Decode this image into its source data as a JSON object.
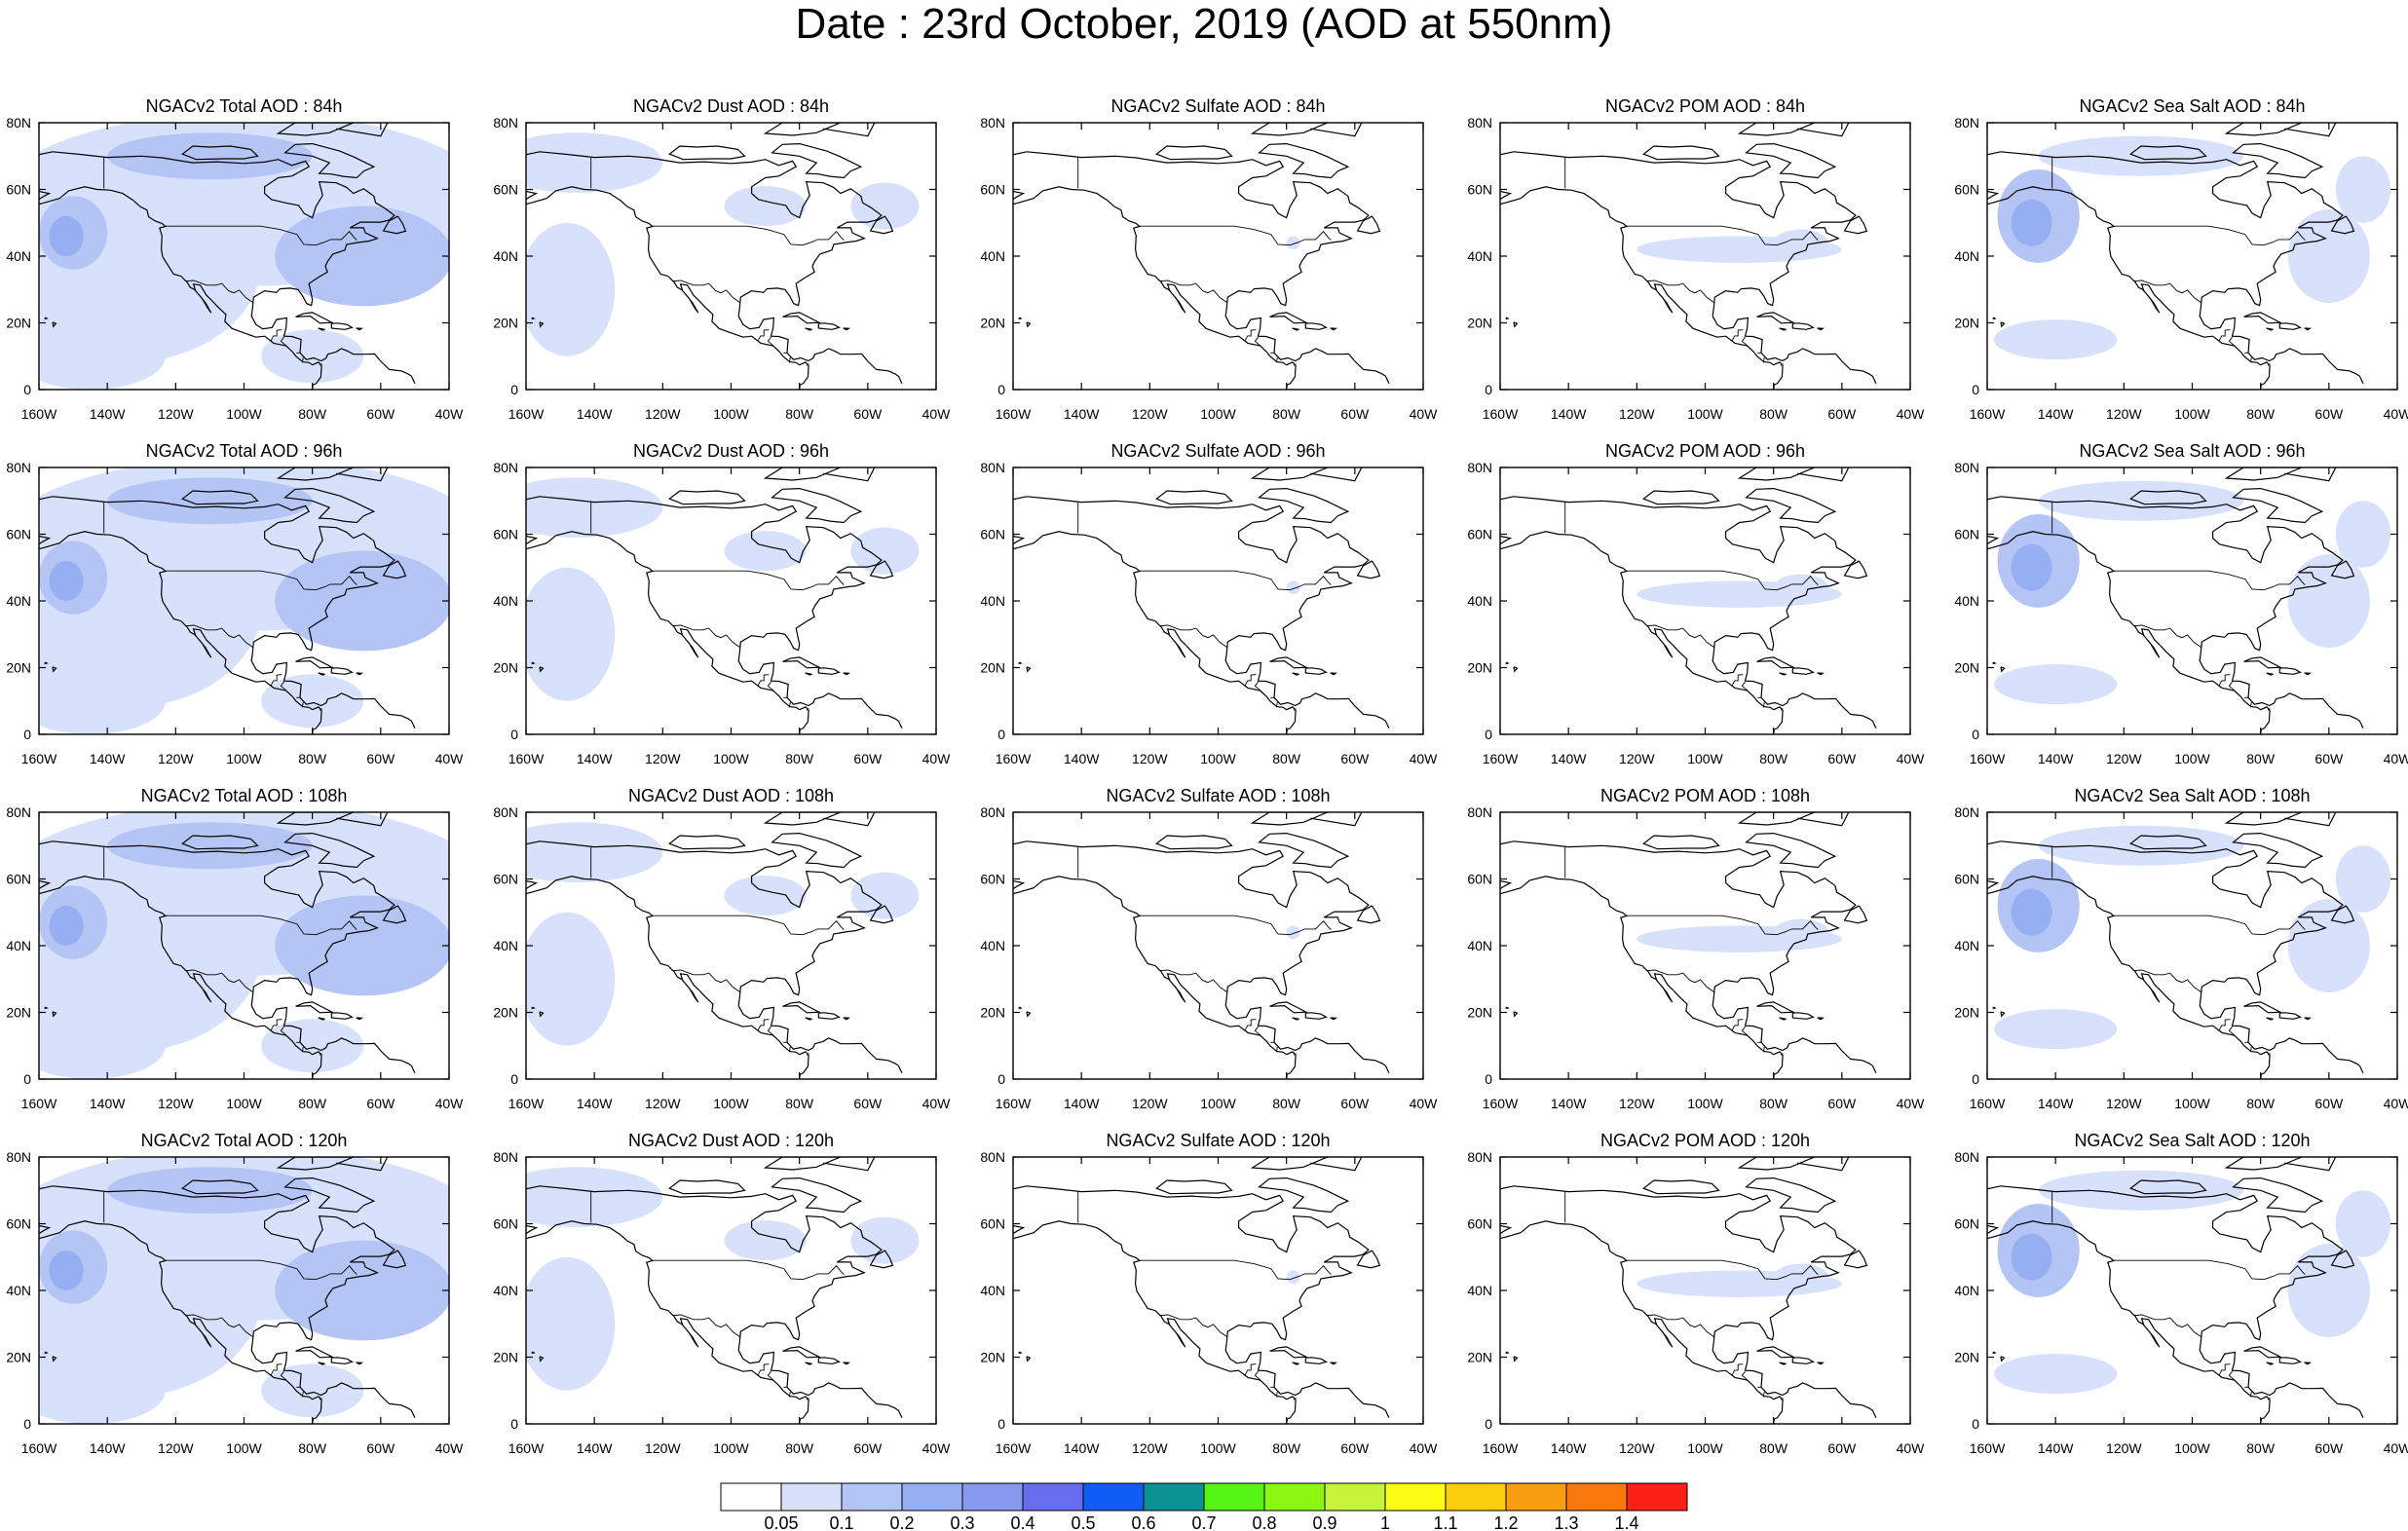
{
  "figure": {
    "title": "Date : 23rd October, 2019 (AOD at 550nm)",
    "x_ticks": [
      "160W",
      "140W",
      "120W",
      "100W",
      "80W",
      "60W",
      "40W"
    ],
    "y_ticks": [
      "0",
      "20N",
      "40N",
      "60N",
      "80N"
    ],
    "rows": [
      {
        "panels": [
          {
            "title": "NGACv2 Total AOD : 84h",
            "field": "total"
          },
          {
            "title": "NGACv2 Dust AOD : 84h",
            "field": "dust"
          },
          {
            "title": "NGACv2 Sulfate AOD : 84h",
            "field": "sulfate"
          },
          {
            "title": "NGACv2 POM AOD : 84h",
            "field": "pom"
          },
          {
            "title": "NGACv2 Sea Salt AOD : 84h",
            "field": "seasalt"
          }
        ]
      },
      {
        "panels": [
          {
            "title": "NGACv2 Total AOD : 96h",
            "field": "total"
          },
          {
            "title": "NGACv2 Dust AOD : 96h",
            "field": "dust"
          },
          {
            "title": "NGACv2 Sulfate AOD : 96h",
            "field": "sulfate"
          },
          {
            "title": "NGACv2 POM AOD : 96h",
            "field": "pom"
          },
          {
            "title": "NGACv2 Sea Salt AOD : 96h",
            "field": "seasalt"
          }
        ]
      },
      {
        "panels": [
          {
            "title": "NGACv2 Total AOD : 108h",
            "field": "total"
          },
          {
            "title": "NGACv2 Dust AOD : 108h",
            "field": "dust"
          },
          {
            "title": "NGACv2 Sulfate AOD : 108h",
            "field": "sulfate"
          },
          {
            "title": "NGACv2 POM AOD : 108h",
            "field": "pom"
          },
          {
            "title": "NGACv2 Sea Salt AOD : 108h",
            "field": "seasalt"
          }
        ]
      },
      {
        "panels": [
          {
            "title": "NGACv2 Total AOD : 120h",
            "field": "total"
          },
          {
            "title": "NGACv2 Dust AOD : 120h",
            "field": "dust"
          },
          {
            "title": "NGACv2 Sulfate AOD : 120h",
            "field": "sulfate"
          },
          {
            "title": "NGACv2 POM AOD : 120h",
            "field": "pom"
          },
          {
            "title": "NGACv2 Sea Salt  AOD : 120h",
            "field": "seasalt"
          }
        ]
      }
    ]
  },
  "colorbar": {
    "labels": [
      "0.05",
      "0.1",
      "0.2",
      "0.3",
      "0.4",
      "0.5",
      "0.6",
      "0.7",
      "0.8",
      "0.9",
      "1",
      "1.1",
      "1.2",
      "1.3",
      "1.4"
    ],
    "colors": [
      "#ffffff",
      "#d7e1fb",
      "#b4c5f5",
      "#96aff2",
      "#8899f0",
      "#6a6cf0",
      "#0f5cf6",
      "#0a9392",
      "#55f415",
      "#8cf512",
      "#c6f43a",
      "#fcfc15",
      "#fdce0f",
      "#f89d0f",
      "#fb780a",
      "#fb2116"
    ]
  }
}
